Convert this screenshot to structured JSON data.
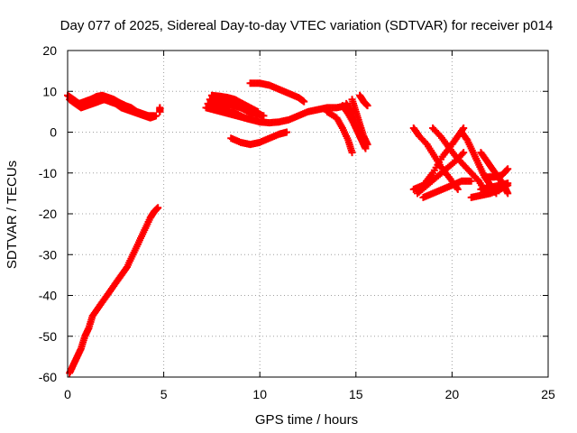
{
  "chart_data": {
    "type": "scatter",
    "title": "Day 077 of 2025, Sidereal Day-to-day VTEC variation (SDTVAR) for receiver p014",
    "xlabel": "GPS time / hours",
    "ylabel": "SDTVAR / TECUs",
    "xlim": [
      0,
      25
    ],
    "ylim": [
      -60,
      20
    ],
    "xticks": [
      0,
      5,
      10,
      15,
      20,
      25
    ],
    "yticks": [
      -60,
      -50,
      -40,
      -30,
      -20,
      -10,
      0,
      10,
      20
    ],
    "grid": true,
    "legend": "none",
    "marker": "plus",
    "colors": {
      "series": "#ff0000",
      "grid": "#a0a0a0",
      "axis": "#000000"
    },
    "series": [
      {
        "points": [
          [
            0.0,
            9
          ],
          [
            0.3,
            8
          ],
          [
            0.6,
            7
          ],
          [
            0.9,
            7.5
          ],
          [
            1.2,
            8
          ],
          [
            1.5,
            8.7
          ],
          [
            1.8,
            9
          ],
          [
            2.1,
            8.5
          ],
          [
            2.4,
            8
          ],
          [
            2.7,
            7.2
          ],
          [
            3.0,
            6.5
          ],
          [
            3.3,
            6
          ],
          [
            3.6,
            5
          ],
          [
            3.9,
            4.5
          ],
          [
            4.2,
            4
          ],
          [
            4.5,
            4
          ]
        ]
      },
      {
        "points": [
          [
            0.1,
            8
          ],
          [
            0.4,
            7
          ],
          [
            0.7,
            6
          ],
          [
            1.0,
            6.5
          ],
          [
            1.3,
            7
          ],
          [
            1.6,
            7.5
          ],
          [
            1.9,
            8
          ],
          [
            2.2,
            7.5
          ],
          [
            2.5,
            7
          ],
          [
            2.8,
            6
          ],
          [
            3.1,
            5.5
          ],
          [
            3.4,
            5
          ],
          [
            3.7,
            4.5
          ],
          [
            4.0,
            4
          ],
          [
            4.3,
            3.5
          ],
          [
            4.6,
            4
          ]
        ]
      },
      {
        "points": [
          [
            4.8,
            5
          ],
          [
            4.8,
            6
          ]
        ]
      },
      {
        "points": [
          [
            0.1,
            -59
          ],
          [
            0.3,
            -57
          ],
          [
            0.5,
            -55
          ],
          [
            0.7,
            -53
          ],
          [
            0.9,
            -50
          ],
          [
            1.1,
            -48
          ],
          [
            1.3,
            -45
          ],
          [
            1.6,
            -43
          ],
          [
            1.9,
            -41
          ],
          [
            2.2,
            -39
          ],
          [
            2.5,
            -37
          ],
          [
            2.8,
            -35
          ],
          [
            3.1,
            -33
          ],
          [
            3.4,
            -30
          ],
          [
            3.7,
            -27
          ],
          [
            4.0,
            -24
          ],
          [
            4.3,
            -21
          ],
          [
            4.5,
            -19.5
          ],
          [
            4.7,
            -18.5
          ]
        ]
      },
      {
        "points": [
          [
            7.3,
            7
          ],
          [
            7.6,
            6.5
          ],
          [
            8.0,
            6
          ],
          [
            8.4,
            5
          ],
          [
            8.8,
            4.5
          ],
          [
            9.2,
            3.5
          ],
          [
            9.6,
            3
          ],
          [
            10.0,
            2.5
          ],
          [
            10.5,
            2.3
          ],
          [
            11.0,
            2.5
          ],
          [
            11.5,
            3
          ],
          [
            12.0,
            4
          ],
          [
            12.5,
            5
          ],
          [
            13.0,
            5.5
          ],
          [
            13.5,
            6
          ],
          [
            14.0,
            6
          ],
          [
            14.5,
            6.5
          ]
        ]
      },
      {
        "points": [
          [
            7.5,
            9
          ],
          [
            7.9,
            8.8
          ],
          [
            8.3,
            8.5
          ],
          [
            8.7,
            8
          ],
          [
            9.1,
            7
          ],
          [
            9.5,
            6
          ],
          [
            9.9,
            5
          ]
        ]
      },
      {
        "points": [
          [
            7.4,
            8
          ],
          [
            7.8,
            7.5
          ],
          [
            8.2,
            7
          ],
          [
            8.6,
            6.5
          ],
          [
            9.0,
            6
          ],
          [
            9.4,
            5
          ],
          [
            9.8,
            4.5
          ],
          [
            10.2,
            4
          ]
        ]
      },
      {
        "points": [
          [
            7.2,
            6
          ],
          [
            7.6,
            5.5
          ],
          [
            8.0,
            5
          ],
          [
            8.4,
            4.5
          ],
          [
            8.8,
            4
          ],
          [
            9.2,
            3.5
          ],
          [
            9.6,
            3
          ]
        ]
      },
      {
        "points": [
          [
            8.5,
            -1.5
          ],
          [
            9.0,
            -2.5
          ],
          [
            9.5,
            -3
          ],
          [
            10.0,
            -2.5
          ],
          [
            10.5,
            -1.5
          ],
          [
            11.0,
            -0.5
          ],
          [
            11.4,
            0
          ]
        ]
      },
      {
        "points": [
          [
            9.5,
            12
          ],
          [
            10.0,
            12
          ],
          [
            10.5,
            11.5
          ],
          [
            11.0,
            10.5
          ],
          [
            11.5,
            9.5
          ],
          [
            12.0,
            8.5
          ],
          [
            12.3,
            7.5
          ]
        ]
      },
      {
        "points": [
          [
            13.5,
            5
          ],
          [
            14.0,
            3.5
          ],
          [
            14.3,
            1
          ],
          [
            14.6,
            -2
          ],
          [
            14.8,
            -5
          ]
        ]
      },
      {
        "points": [
          [
            14.3,
            6.5
          ],
          [
            14.6,
            4.5
          ],
          [
            14.9,
            2
          ],
          [
            15.1,
            0
          ],
          [
            15.3,
            -2
          ],
          [
            15.5,
            -4
          ]
        ]
      },
      {
        "points": [
          [
            14.8,
            8
          ],
          [
            15.0,
            5
          ],
          [
            15.2,
            2
          ],
          [
            15.4,
            -1
          ],
          [
            15.6,
            -3
          ]
        ]
      },
      {
        "points": [
          [
            15.2,
            9
          ],
          [
            15.4,
            7.5
          ],
          [
            15.6,
            6.5
          ]
        ]
      },
      {
        "points": [
          [
            14.5,
            7
          ],
          [
            14.8,
            5
          ],
          [
            15.0,
            2
          ],
          [
            15.2,
            -1
          ],
          [
            15.5,
            -3.5
          ]
        ]
      },
      {
        "points": [
          [
            18.0,
            1
          ],
          [
            18.3,
            -1
          ],
          [
            18.7,
            -3
          ],
          [
            19.1,
            -6
          ],
          [
            19.5,
            -9
          ],
          [
            20.0,
            -12
          ],
          [
            20.3,
            -14
          ]
        ]
      },
      {
        "points": [
          [
            19.0,
            1
          ],
          [
            19.4,
            -1
          ],
          [
            19.8,
            -3.5
          ],
          [
            20.2,
            -6
          ],
          [
            20.6,
            -8
          ],
          [
            21.0,
            -10
          ],
          [
            21.4,
            -12
          ],
          [
            21.8,
            -15
          ]
        ]
      },
      {
        "points": [
          [
            20.5,
            0
          ],
          [
            20.8,
            -2
          ],
          [
            21.1,
            -5
          ],
          [
            21.4,
            -8
          ],
          [
            21.7,
            -11
          ],
          [
            22.0,
            -13
          ],
          [
            22.3,
            -15
          ]
        ]
      },
      {
        "points": [
          [
            21.5,
            -5
          ],
          [
            21.8,
            -7
          ],
          [
            22.1,
            -9
          ],
          [
            22.4,
            -11
          ],
          [
            22.7,
            -13
          ],
          [
            22.9,
            -15
          ]
        ]
      },
      {
        "points": [
          [
            18.0,
            -14
          ],
          [
            18.5,
            -13
          ],
          [
            19.0,
            -10
          ],
          [
            19.5,
            -6
          ],
          [
            20.0,
            -3
          ],
          [
            20.3,
            -1
          ],
          [
            20.6,
            1
          ]
        ]
      },
      {
        "points": [
          [
            18.2,
            -15
          ],
          [
            18.7,
            -13
          ],
          [
            19.2,
            -11
          ],
          [
            19.7,
            -9
          ],
          [
            20.2,
            -7
          ],
          [
            20.6,
            -5
          ]
        ]
      },
      {
        "points": [
          [
            18.5,
            -16
          ],
          [
            19.0,
            -15
          ],
          [
            19.5,
            -14
          ],
          [
            20.0,
            -13
          ],
          [
            20.5,
            -12
          ],
          [
            21.0,
            -12
          ]
        ]
      },
      {
        "points": [
          [
            21.5,
            -14
          ],
          [
            22.0,
            -13.5
          ],
          [
            22.5,
            -13
          ],
          [
            22.9,
            -12.5
          ]
        ]
      },
      {
        "points": [
          [
            21.0,
            -16
          ],
          [
            21.5,
            -15.5
          ],
          [
            22.0,
            -15
          ],
          [
            22.5,
            -14
          ],
          [
            22.9,
            -13
          ]
        ]
      },
      {
        "points": [
          [
            21.8,
            -11
          ],
          [
            22.2,
            -11
          ],
          [
            22.6,
            -10.5
          ],
          [
            22.9,
            -9
          ]
        ]
      }
    ]
  }
}
